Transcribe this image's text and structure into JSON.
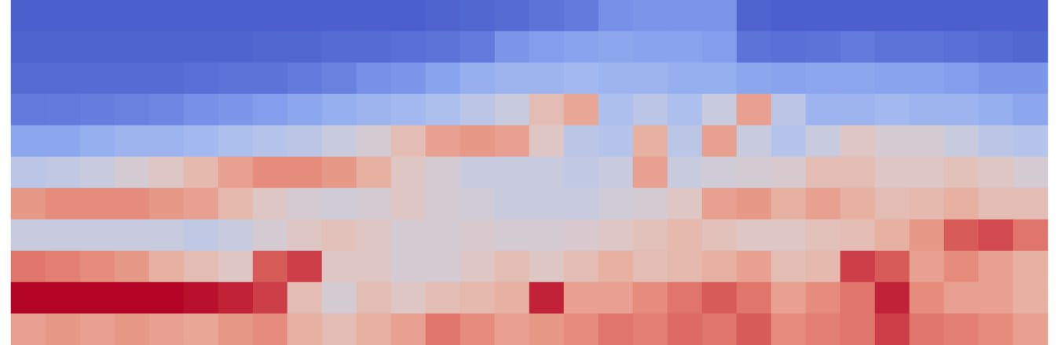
{
  "chart_data": {
    "type": "heatmap",
    "tick_labels": false,
    "color_range": [
      0,
      1
    ],
    "cells": [
      [
        0.05,
        0.05,
        0.05,
        0.05,
        0.05,
        0.05,
        0.05,
        0.05,
        0.05,
        0.05,
        0.05,
        0.05,
        0.06,
        0.07,
        0.08,
        0.1,
        0.12,
        0.18,
        0.2,
        0.2,
        0.2,
        0.06,
        0.05,
        0.05,
        0.05,
        0.05,
        0.05,
        0.05,
        0.05,
        0.05
      ],
      [
        0.06,
        0.06,
        0.06,
        0.06,
        0.06,
        0.06,
        0.06,
        0.07,
        0.07,
        0.08,
        0.08,
        0.09,
        0.1,
        0.12,
        0.2,
        0.22,
        0.24,
        0.25,
        0.24,
        0.24,
        0.22,
        0.1,
        0.09,
        0.1,
        0.12,
        0.1,
        0.1,
        0.09,
        0.08,
        0.07
      ],
      [
        0.08,
        0.08,
        0.08,
        0.08,
        0.08,
        0.09,
        0.1,
        0.1,
        0.12,
        0.14,
        0.18,
        0.2,
        0.24,
        0.28,
        0.3,
        0.3,
        0.32,
        0.3,
        0.3,
        0.28,
        0.28,
        0.25,
        0.24,
        0.25,
        0.25,
        0.24,
        0.24,
        0.22,
        0.2,
        0.2
      ],
      [
        0.12,
        0.12,
        0.13,
        0.14,
        0.15,
        0.18,
        0.2,
        0.22,
        0.25,
        0.28,
        0.3,
        0.32,
        0.35,
        0.4,
        0.45,
        0.6,
        0.68,
        0.35,
        0.4,
        0.35,
        0.45,
        0.7,
        0.4,
        0.3,
        0.3,
        0.32,
        0.3,
        0.3,
        0.28,
        0.25
      ],
      [
        0.25,
        0.25,
        0.28,
        0.3,
        0.3,
        0.32,
        0.35,
        0.38,
        0.4,
        0.45,
        0.5,
        0.6,
        0.7,
        0.72,
        0.7,
        0.55,
        0.4,
        0.38,
        0.65,
        0.4,
        0.7,
        0.45,
        0.38,
        0.45,
        0.55,
        0.5,
        0.5,
        0.45,
        0.4,
        0.38
      ],
      [
        0.4,
        0.42,
        0.45,
        0.5,
        0.55,
        0.62,
        0.7,
        0.75,
        0.75,
        0.72,
        0.65,
        0.55,
        0.5,
        0.45,
        0.45,
        0.45,
        0.42,
        0.45,
        0.7,
        0.45,
        0.48,
        0.5,
        0.52,
        0.6,
        0.6,
        0.55,
        0.55,
        0.58,
        0.55,
        0.5
      ],
      [
        0.72,
        0.75,
        0.75,
        0.75,
        0.72,
        0.7,
        0.62,
        0.55,
        0.5,
        0.48,
        0.5,
        0.55,
        0.5,
        0.48,
        0.45,
        0.45,
        0.45,
        0.48,
        0.5,
        0.55,
        0.7,
        0.72,
        0.65,
        0.7,
        0.65,
        0.6,
        0.62,
        0.65,
        0.6,
        0.6
      ],
      [
        0.45,
        0.45,
        0.45,
        0.45,
        0.45,
        0.42,
        0.45,
        0.5,
        0.55,
        0.58,
        0.55,
        0.5,
        0.5,
        0.52,
        0.5,
        0.5,
        0.52,
        0.55,
        0.58,
        0.62,
        0.58,
        0.55,
        0.55,
        0.58,
        0.6,
        0.65,
        0.72,
        0.85,
        0.88,
        0.8
      ],
      [
        0.8,
        0.78,
        0.75,
        0.72,
        0.65,
        0.6,
        0.55,
        0.85,
        0.9,
        0.55,
        0.55,
        0.5,
        0.5,
        0.55,
        0.6,
        0.55,
        0.6,
        0.65,
        0.6,
        0.62,
        0.65,
        0.7,
        0.6,
        0.62,
        0.9,
        0.85,
        0.7,
        0.75,
        0.7,
        0.65
      ],
      [
        1.0,
        1.0,
        1.0,
        1.0,
        1.0,
        0.98,
        0.95,
        0.9,
        0.6,
        0.5,
        0.6,
        0.55,
        0.6,
        0.62,
        0.65,
        0.95,
        0.7,
        0.7,
        0.75,
        0.8,
        0.85,
        0.8,
        0.7,
        0.75,
        0.8,
        0.95,
        0.75,
        0.7,
        0.7,
        0.65
      ],
      [
        0.7,
        0.72,
        0.7,
        0.72,
        0.7,
        0.68,
        0.72,
        0.75,
        0.65,
        0.6,
        0.65,
        0.7,
        0.8,
        0.75,
        0.7,
        0.72,
        0.75,
        0.8,
        0.78,
        0.82,
        0.8,
        0.85,
        0.75,
        0.78,
        0.8,
        0.9,
        0.8,
        0.78,
        0.75,
        0.7
      ]
    ]
  }
}
